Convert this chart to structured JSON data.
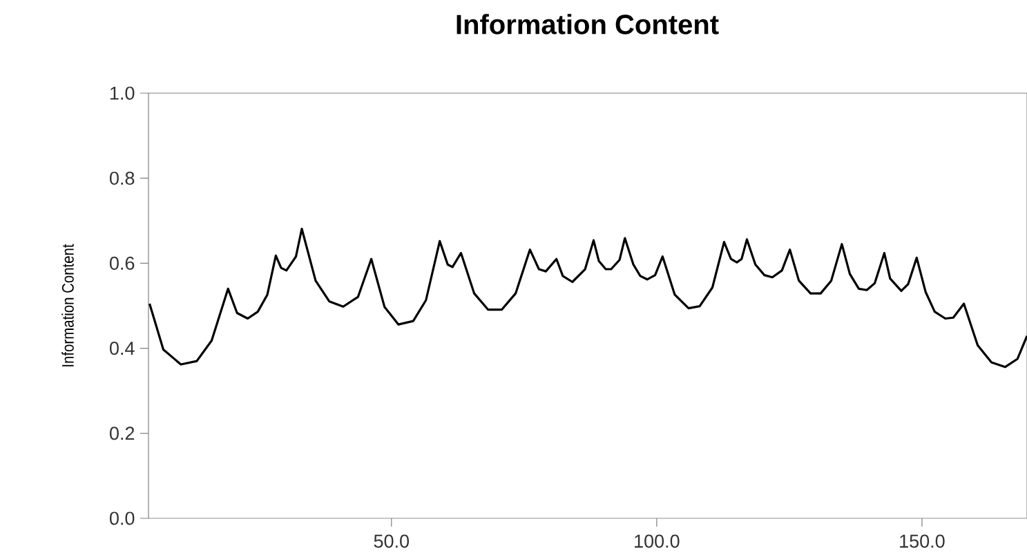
{
  "chart_data": {
    "type": "line",
    "title": "Information Content",
    "ylabel": "Information Content",
    "xlim": [
      4.2,
      169.8
    ],
    "ylim": [
      0,
      1
    ],
    "xticks": [
      {
        "value": 50,
        "label": "50.0"
      },
      {
        "value": 100,
        "label": "100.0"
      },
      {
        "value": 150,
        "label": "150.0"
      }
    ],
    "yticks": [
      {
        "value": 0,
        "label": "0.0"
      },
      {
        "value": 0.2,
        "label": "0.2"
      },
      {
        "value": 0.4,
        "label": "0.4"
      },
      {
        "value": 0.6,
        "label": "0.6"
      },
      {
        "value": 0.8,
        "label": "0.8"
      },
      {
        "value": 1,
        "label": "1.0"
      }
    ],
    "grid": false,
    "marker": "none",
    "line_style": "solid",
    "x": [
      4.4,
      7.0,
      10.3,
      13.3,
      16.1,
      19.2,
      20.9,
      22.9,
      24.8,
      26.6,
      28.2,
      29.2,
      30.2,
      32.0,
      33.1,
      35.7,
      38.3,
      40.9,
      43.7,
      46.2,
      48.7,
      51.3,
      54.1,
      56.5,
      59.1,
      60.6,
      61.5,
      63.1,
      65.6,
      68.2,
      70.8,
      73.4,
      76.1,
      77.8,
      79.1,
      81.1,
      82.3,
      84.1,
      86.5,
      88.1,
      89.1,
      90.4,
      91.4,
      93.0,
      94.0,
      95.6,
      96.9,
      98.2,
      99.7,
      101.1,
      103.4,
      106.0,
      108.1,
      110.5,
      112.7,
      114.0,
      115.1,
      116.0,
      117.0,
      118.6,
      120.3,
      121.8,
      123.6,
      125.1,
      126.8,
      129.0,
      130.9,
      132.9,
      134.9,
      136.4,
      138.1,
      139.6,
      141.1,
      142.9,
      144.0,
      146.1,
      147.4,
      149.0,
      150.7,
      152.4,
      154.4,
      155.9,
      157.9,
      160.5,
      163.1,
      165.7,
      168.0,
      169.8
    ],
    "series": [
      {
        "color": "#000000",
        "values": [
          0.505,
          0.397,
          0.362,
          0.37,
          0.418,
          0.54,
          0.483,
          0.47,
          0.486,
          0.526,
          0.618,
          0.589,
          0.583,
          0.616,
          0.681,
          0.559,
          0.51,
          0.498,
          0.521,
          0.61,
          0.497,
          0.456,
          0.464,
          0.513,
          0.652,
          0.597,
          0.591,
          0.624,
          0.529,
          0.491,
          0.491,
          0.529,
          0.632,
          0.586,
          0.581,
          0.61,
          0.57,
          0.556,
          0.586,
          0.654,
          0.605,
          0.586,
          0.586,
          0.608,
          0.659,
          0.597,
          0.57,
          0.562,
          0.572,
          0.616,
          0.526,
          0.494,
          0.499,
          0.543,
          0.65,
          0.61,
          0.602,
          0.61,
          0.656,
          0.597,
          0.572,
          0.567,
          0.583,
          0.632,
          0.559,
          0.529,
          0.529,
          0.559,
          0.645,
          0.575,
          0.54,
          0.537,
          0.553,
          0.624,
          0.564,
          0.535,
          0.551,
          0.613,
          0.532,
          0.486,
          0.47,
          0.472,
          0.505,
          0.407,
          0.367,
          0.356,
          0.375,
          0.429
        ]
      }
    ]
  }
}
